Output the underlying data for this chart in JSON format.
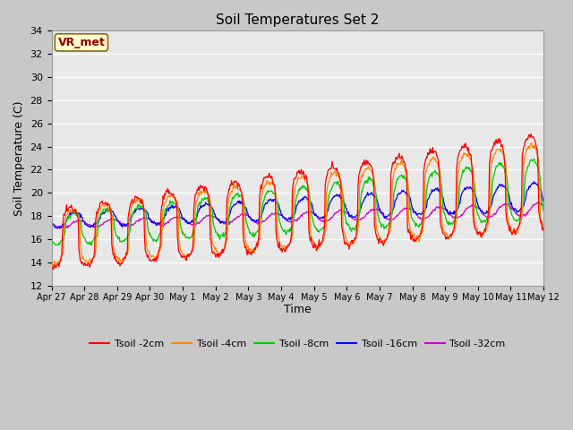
{
  "title": "Soil Temperatures Set 2",
  "xlabel": "Time",
  "ylabel": "Soil Temperature (C)",
  "ylim": [
    12,
    34
  ],
  "yticks": [
    12,
    14,
    16,
    18,
    20,
    22,
    24,
    26,
    28,
    30,
    32,
    34
  ],
  "series_labels": [
    "Tsoil -2cm",
    "Tsoil -4cm",
    "Tsoil -8cm",
    "Tsoil -16cm",
    "Tsoil -32cm"
  ],
  "series_colors": [
    "#ff0000",
    "#ff8800",
    "#00cc00",
    "#0000ff",
    "#cc00cc"
  ],
  "annotation_text": "VR_met",
  "annotation_box_color": "#ffffcc",
  "annotation_text_color": "#8B0000",
  "n_days": 16,
  "xtick_labels": [
    "Apr 27",
    "Apr 28",
    "Apr 29",
    "Apr 30",
    "May 1",
    "May 2",
    "May 3",
    "May 4",
    "May 5",
    "May 6",
    "May 7",
    "May 8",
    "May 9",
    "May 10",
    "May 11",
    "May 12"
  ]
}
